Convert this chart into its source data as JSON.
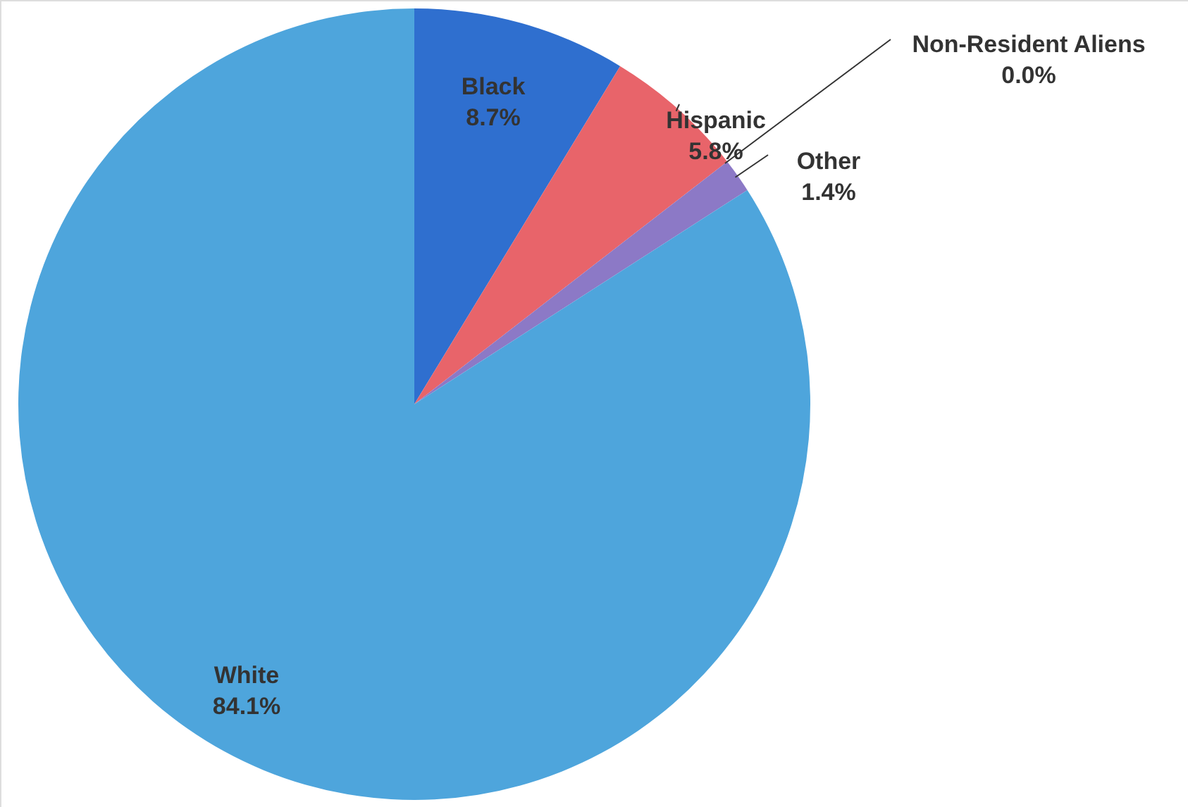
{
  "chart_data": {
    "type": "pie",
    "categories": [
      "Black",
      "Hispanic",
      "Non-Resident Aliens",
      "Other",
      "White"
    ],
    "values": [
      8.7,
      5.8,
      0.0,
      1.4,
      84.1
    ],
    "colors": [
      "#2f6fcf",
      "#e8646a",
      "#7fb35a",
      "#8c79c6",
      "#4ea5dc"
    ],
    "value_labels": [
      "8.7%",
      "5.8%",
      "0.0%",
      "1.4%",
      "84.1%"
    ]
  }
}
